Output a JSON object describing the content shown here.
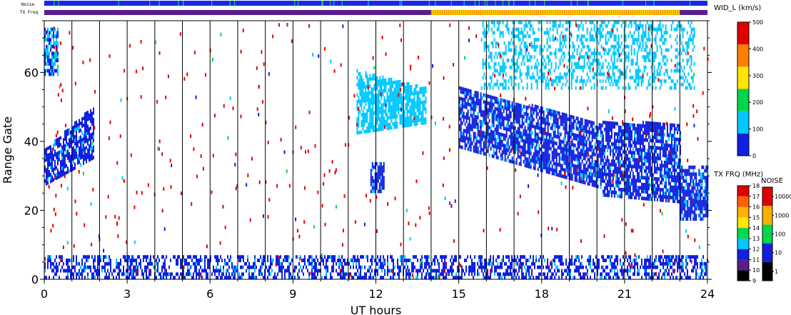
{
  "chart_data": {
    "type": "heatmap",
    "xlabel": "UT hours",
    "ylabel": "Range Gate",
    "xlim": [
      0,
      24
    ],
    "ylim": [
      0,
      75
    ],
    "x_ticks": [
      0,
      3,
      6,
      9,
      12,
      15,
      18,
      21,
      24
    ],
    "y_ticks": [
      0,
      20,
      40,
      60
    ],
    "strip_labels": {
      "noise": "Noise",
      "freq": "TX Freq"
    },
    "tx_freq_strip": [
      {
        "from": 0,
        "to": 14,
        "mhz": 10,
        "color": "#5a1e8c"
      },
      {
        "from": 14,
        "to": 23,
        "mhz": 14,
        "color": "#ffcc00"
      },
      {
        "from": 23,
        "to": 24,
        "mhz": 10,
        "color": "#5a1e8c"
      }
    ],
    "noise_strip": {
      "dominant_level": 10,
      "color": "#1a28e6"
    },
    "vertical_markers": [
      1,
      2,
      3,
      4,
      5,
      6,
      7,
      8,
      9,
      10,
      11,
      12,
      13,
      14,
      15,
      16,
      17,
      18,
      19,
      20,
      21,
      22,
      23
    ],
    "scatter_regions": [
      {
        "name": "early-arc",
        "x_from": 0.0,
        "x_to": 1.8,
        "y_low_start": 27,
        "y_low_end": 35,
        "y_high_start": 37,
        "y_high_end": 50,
        "value": 30
      },
      {
        "name": "ground-scatter",
        "x_from": 0.0,
        "x_to": 24.0,
        "y_low_start": 0,
        "y_low_end": 0,
        "y_high_start": 6,
        "y_high_end": 6,
        "value": 20
      },
      {
        "name": "midday-patch",
        "x_from": 11.3,
        "x_to": 13.8,
        "y_low_start": 42,
        "y_low_end": 45,
        "y_high_start": 60,
        "y_high_end": 55,
        "value": 60
      },
      {
        "name": "small-patch",
        "x_from": 11.8,
        "x_to": 12.3,
        "y_low_start": 25,
        "y_low_end": 25,
        "y_high_start": 33,
        "y_high_end": 33,
        "value": 40
      },
      {
        "name": "afternoon-main",
        "x_from": 15.0,
        "x_to": 20.2,
        "y_low_start": 38,
        "y_low_end": 26,
        "y_high_start": 55,
        "y_high_end": 45,
        "value": 30
      },
      {
        "name": "evening-main",
        "x_from": 20.2,
        "x_to": 23.0,
        "y_low_start": 24,
        "y_low_end": 22,
        "y_high_start": 45,
        "y_high_end": 45,
        "value": 30
      },
      {
        "name": "late-band",
        "x_from": 23.0,
        "x_to": 24.0,
        "y_low_start": 17,
        "y_low_end": 17,
        "y_high_start": 32,
        "y_high_end": 32,
        "value": 40
      },
      {
        "name": "upper-scatter",
        "x_from": 15.8,
        "x_to": 23.5,
        "y_low_start": 55,
        "y_low_end": 55,
        "y_high_start": 74,
        "y_high_end": 74,
        "value": 80
      },
      {
        "name": "top-left",
        "x_from": 0.0,
        "x_to": 0.5,
        "y_low_start": 59,
        "y_low_end": 59,
        "y_high_start": 72,
        "y_high_end": 72,
        "value": 90
      }
    ],
    "colorbars": [
      {
        "name": "width",
        "title": "WID_L (km/s)",
        "ticks": [
          0,
          100,
          200,
          300,
          400,
          500
        ],
        "colors": [
          "#1020e0",
          "#00c8ff",
          "#00d84a",
          "#ffe600",
          "#ff8000",
          "#e00000"
        ]
      },
      {
        "name": "tx-freq",
        "title": "TX FRQ (MHz)",
        "ticks": [
          9,
          10,
          11,
          12,
          13,
          14,
          15,
          16,
          17,
          18
        ],
        "colors": [
          "#000000",
          "#5a1e8c",
          "#1020e0",
          "#00c8ff",
          "#00d84a",
          "#ffe600",
          "#ffb000",
          "#ff6000",
          "#e00000"
        ]
      },
      {
        "name": "noise",
        "title": "NOISE",
        "ticks": [
          "1",
          "10",
          "100",
          "1000",
          "10000"
        ],
        "colors": [
          "#000000",
          "#1020e0",
          "#00d84a",
          "#ffb000",
          "#e00000"
        ]
      }
    ]
  }
}
